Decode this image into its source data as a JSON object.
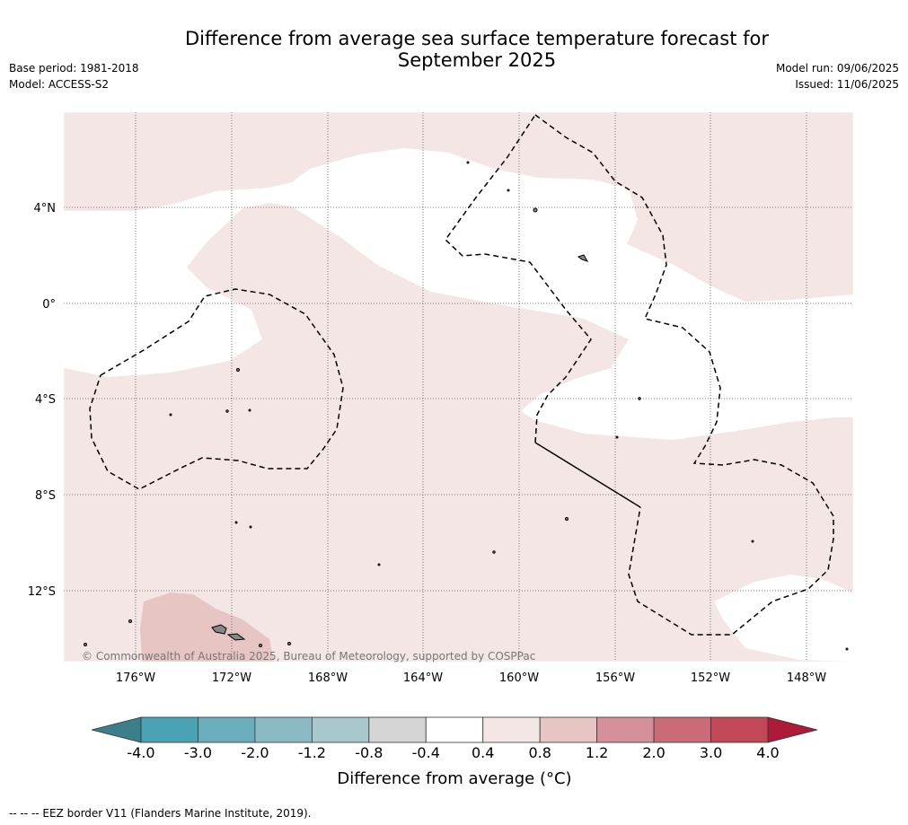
{
  "header": {
    "title_line1": "Difference from average sea surface temperature forecast for",
    "title_line2": "September 2025",
    "base_period": "Base period: 1981-2018",
    "model": "Model: ACCESS-S2",
    "model_run": "Model run: 09/06/2025",
    "issued": "Issued: 11/06/2025"
  },
  "map": {
    "lat_labels": [
      "4°N",
      "0°",
      "4°S",
      "8°S",
      "12°S"
    ],
    "lat_values": [
      4,
      0,
      -4,
      -8,
      -12
    ],
    "lon_labels": [
      "176°W",
      "172°W",
      "168°W",
      "164°W",
      "160°W",
      "156°W",
      "152°W",
      "148°W"
    ],
    "lon_values": [
      -176,
      -172,
      -168,
      -164,
      -160,
      -156,
      -152,
      -148
    ],
    "copyright": "© Commonwealth of Australia 2025, Bureau of Meteorology, supported by COSPPac",
    "colors": {
      "band_0_4_to_0_8": "#f3e6e5",
      "band_0_8_to_1_2": "#e6c5c2",
      "neutral": "#ffffff"
    }
  },
  "colorbar": {
    "ticks": [
      "-4.0",
      "-3.0",
      "-2.0",
      "-1.2",
      "-0.8",
      "-0.4",
      "0.4",
      "0.8",
      "1.2",
      "2.0",
      "3.0",
      "4.0"
    ],
    "colors": [
      "#4aa3b5",
      "#6aaebd",
      "#8bbac5",
      "#a9c8cd",
      "#d5d5d5",
      "#ffffff",
      "#f3e6e5",
      "#e6c5c2",
      "#d5909a",
      "#cc6b78",
      "#c24757"
    ],
    "under_color": "#3a7f8a",
    "over_color": "#ad1a3a",
    "label": "Difference from average (°C)"
  },
  "footer": {
    "eez_note": "--  --  -- EEZ border V11 (Flanders Marine Institute, 2019)."
  }
}
